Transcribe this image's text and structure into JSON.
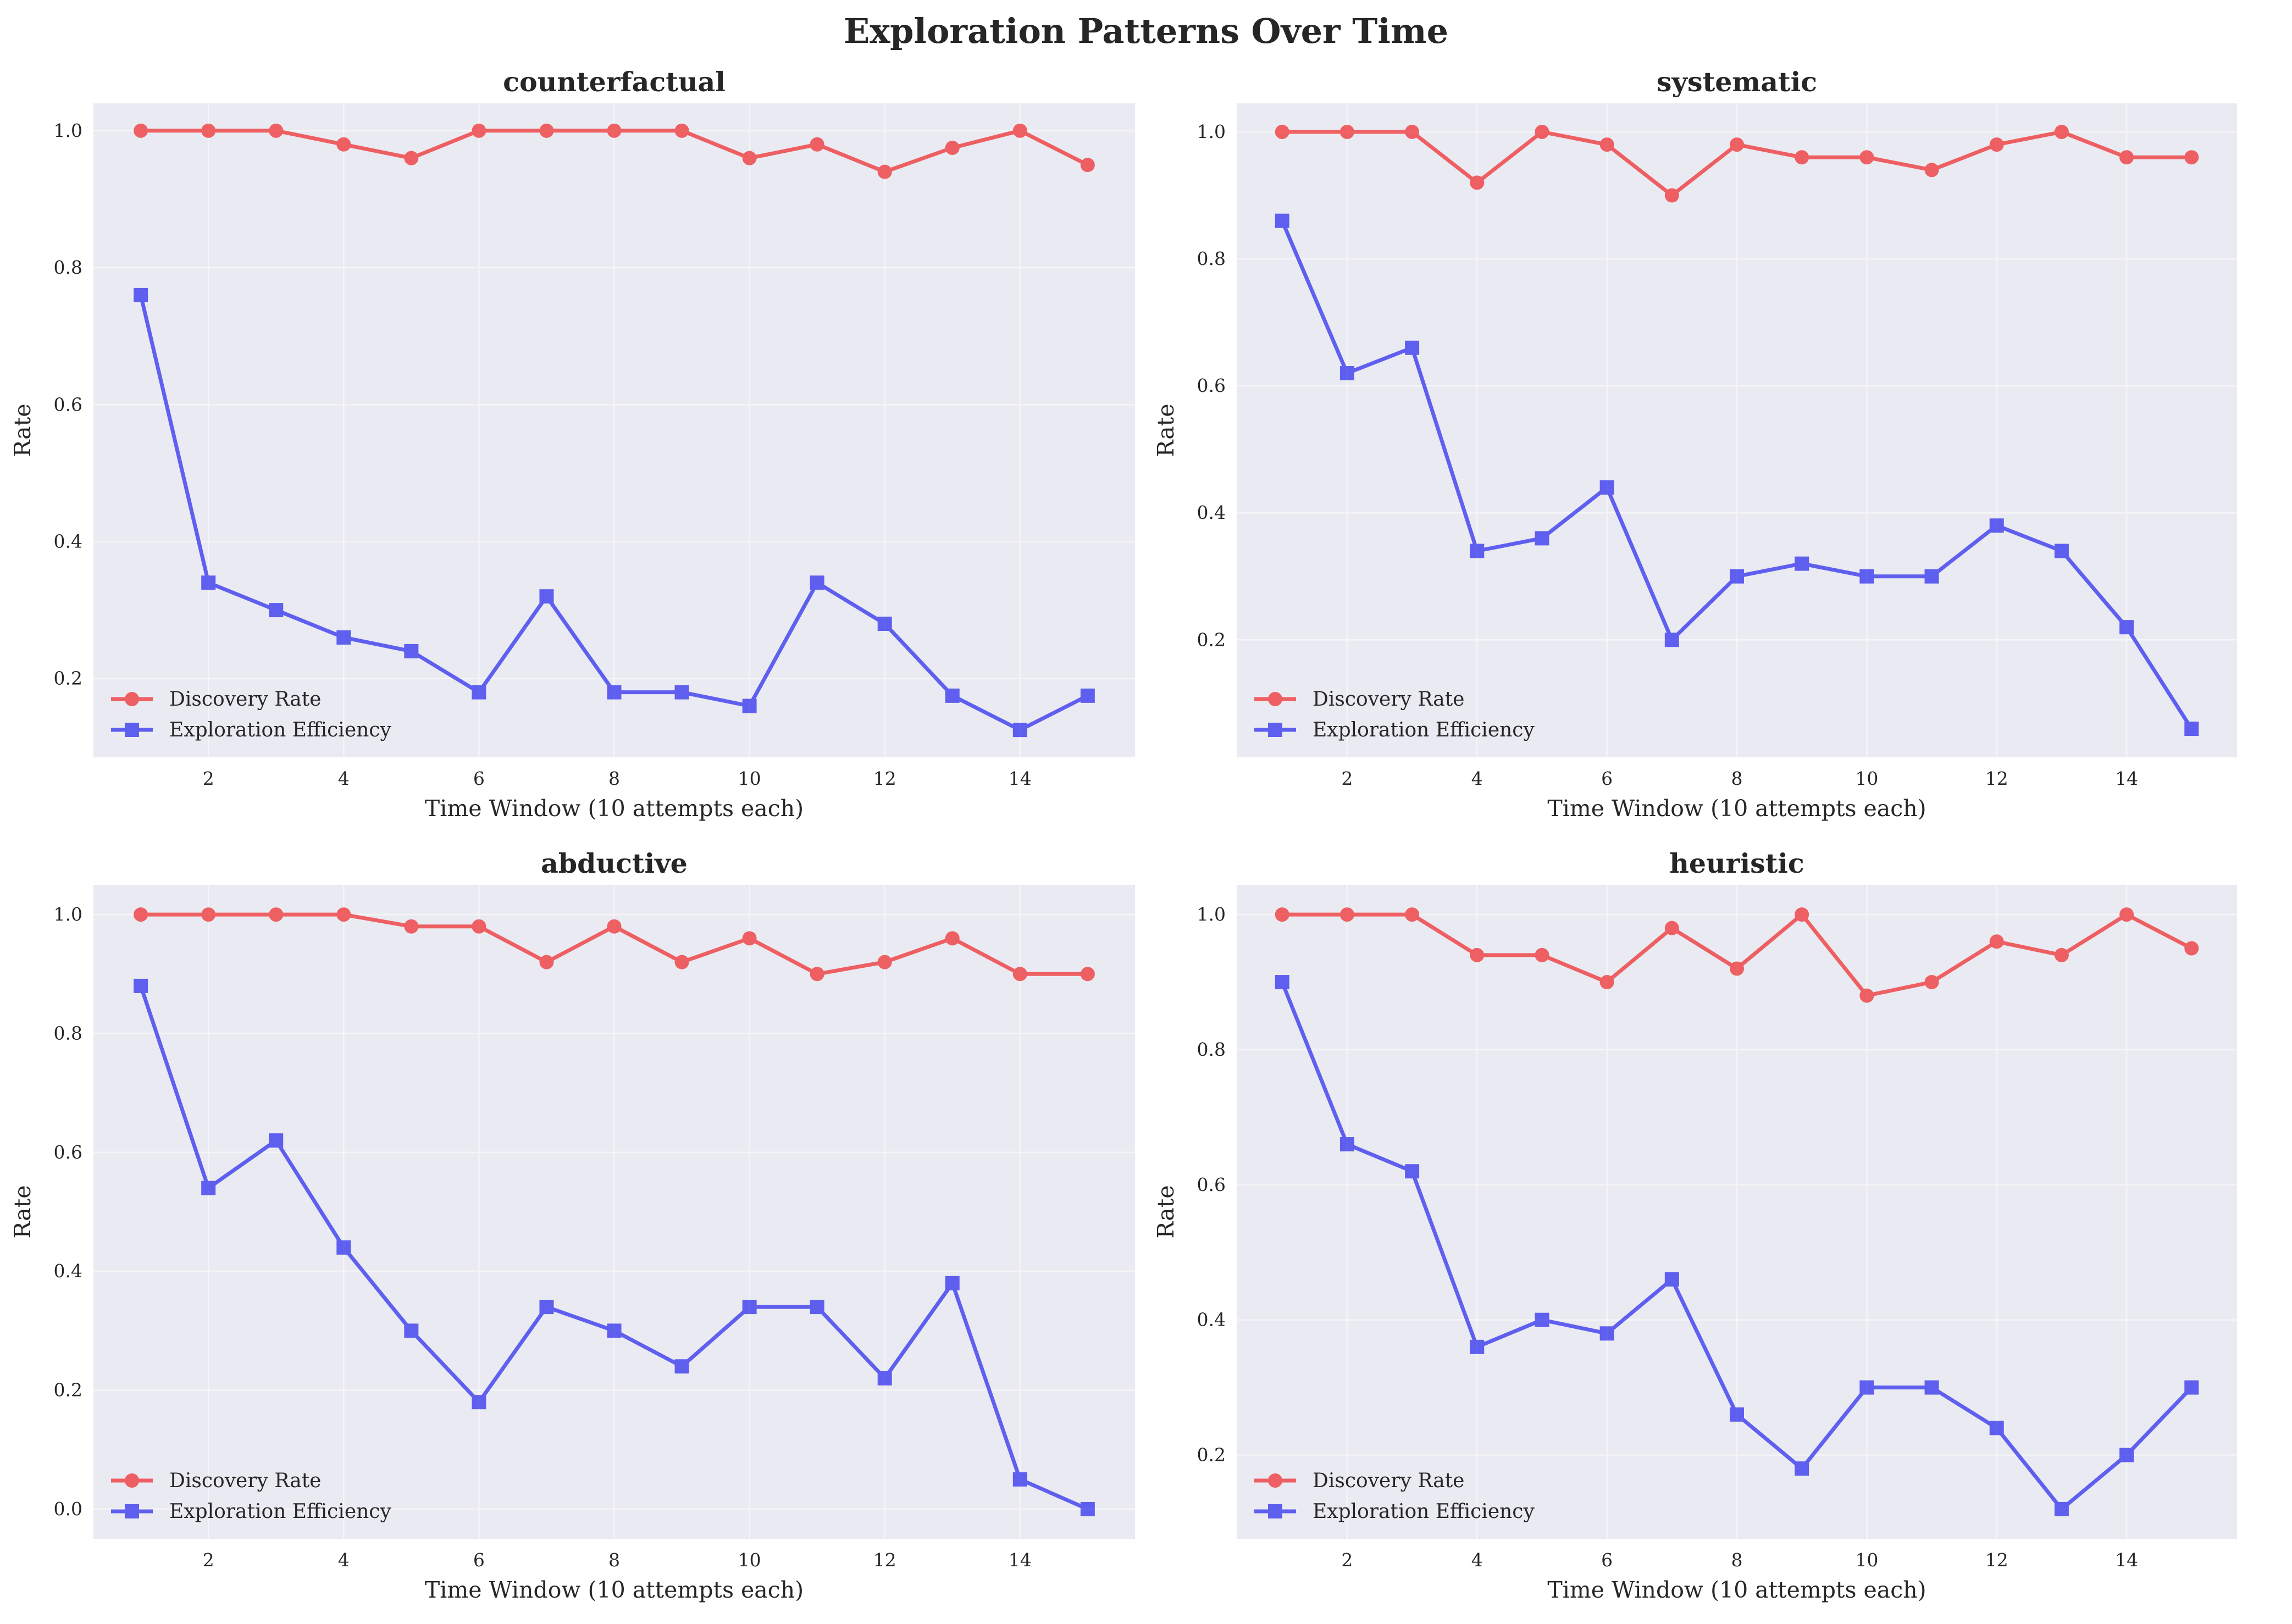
{
  "figure": {
    "title": "Exploration Patterns Over Time"
  },
  "colors": {
    "discovery": "#ef2b2b",
    "efficiency": "#2b2bef",
    "panel_bg": "#eaeaf2",
    "grid": "#f5f5f8",
    "text": "#262626"
  },
  "chart_data": [
    {
      "type": "line",
      "title": "counterfactual",
      "xlabel": "Time Window (10 attempts each)",
      "ylabel": "Rate",
      "x": [
        1,
        2,
        3,
        4,
        5,
        6,
        7,
        8,
        9,
        10,
        11,
        12,
        13,
        14,
        15
      ],
      "xticks": [
        2,
        4,
        6,
        8,
        10,
        12,
        14
      ],
      "xlim": [
        0.3,
        15.7
      ],
      "ylim": [
        0.085,
        1.04
      ],
      "yticks": [
        0.2,
        0.4,
        0.6,
        0.8,
        1.0
      ],
      "ytick_labels": [
        "0.2",
        "0.4",
        "0.6",
        "0.8",
        "1.0"
      ],
      "grid": true,
      "legend": "lower-left",
      "series": [
        {
          "name": "Discovery Rate",
          "marker": "circle",
          "color": "#ef2b2b",
          "values": [
            1.0,
            1.0,
            1.0,
            0.98,
            0.96,
            1.0,
            1.0,
            1.0,
            1.0,
            0.96,
            0.98,
            0.94,
            0.975,
            1.0,
            0.95
          ]
        },
        {
          "name": "Exploration Efficiency",
          "marker": "square",
          "color": "#2b2bef",
          "values": [
            0.76,
            0.34,
            0.3,
            0.26,
            0.24,
            0.18,
            0.32,
            0.18,
            0.18,
            0.16,
            0.34,
            0.28,
            0.175,
            0.125,
            0.175
          ]
        }
      ]
    },
    {
      "type": "line",
      "title": "systematic",
      "xlabel": "Time Window (10 attempts each)",
      "ylabel": "Rate",
      "x": [
        1,
        2,
        3,
        4,
        5,
        6,
        7,
        8,
        9,
        10,
        11,
        12,
        13,
        14,
        15
      ],
      "xticks": [
        2,
        4,
        6,
        8,
        10,
        12,
        14
      ],
      "xlim": [
        0.3,
        15.7
      ],
      "ylim": [
        0.015,
        1.045
      ],
      "yticks": [
        0.2,
        0.4,
        0.6,
        0.8,
        1.0
      ],
      "ytick_labels": [
        "0.2",
        "0.4",
        "0.6",
        "0.8",
        "1.0"
      ],
      "grid": true,
      "legend": "lower-left",
      "series": [
        {
          "name": "Discovery Rate",
          "marker": "circle",
          "color": "#ef2b2b",
          "values": [
            1.0,
            1.0,
            1.0,
            0.92,
            1.0,
            0.98,
            0.9,
            0.98,
            0.96,
            0.96,
            0.94,
            0.98,
            1.0,
            0.96,
            0.96
          ]
        },
        {
          "name": "Exploration Efficiency",
          "marker": "square",
          "color": "#2b2bef",
          "values": [
            0.86,
            0.62,
            0.66,
            0.34,
            0.36,
            0.44,
            0.2,
            0.3,
            0.32,
            0.3,
            0.3,
            0.38,
            0.34,
            0.22,
            0.06
          ]
        }
      ]
    },
    {
      "type": "line",
      "title": "abductive",
      "xlabel": "Time Window (10 attempts each)",
      "ylabel": "Rate",
      "x": [
        1,
        2,
        3,
        4,
        5,
        6,
        7,
        8,
        9,
        10,
        11,
        12,
        13,
        14,
        15
      ],
      "xticks": [
        2,
        4,
        6,
        8,
        10,
        12,
        14
      ],
      "xlim": [
        0.3,
        15.7
      ],
      "ylim": [
        -0.05,
        1.05
      ],
      "yticks": [
        0.0,
        0.2,
        0.4,
        0.6,
        0.8,
        1.0
      ],
      "ytick_labels": [
        "0.0",
        "0.2",
        "0.4",
        "0.6",
        "0.8",
        "1.0"
      ],
      "grid": true,
      "legend": "lower-left",
      "series": [
        {
          "name": "Discovery Rate",
          "marker": "circle",
          "color": "#ef2b2b",
          "values": [
            1.0,
            1.0,
            1.0,
            1.0,
            0.98,
            0.98,
            0.92,
            0.98,
            0.92,
            0.96,
            0.9,
            0.92,
            0.96,
            0.9,
            0.9
          ]
        },
        {
          "name": "Exploration Efficiency",
          "marker": "square",
          "color": "#2b2bef",
          "values": [
            0.88,
            0.54,
            0.62,
            0.44,
            0.3,
            0.18,
            0.34,
            0.3,
            0.24,
            0.34,
            0.34,
            0.22,
            0.38,
            0.05,
            0.0
          ]
        }
      ]
    },
    {
      "type": "line",
      "title": "heuristic",
      "xlabel": "Time Window (10 attempts each)",
      "ylabel": "Rate",
      "x": [
        1,
        2,
        3,
        4,
        5,
        6,
        7,
        8,
        9,
        10,
        11,
        12,
        13,
        14,
        15
      ],
      "xticks": [
        2,
        4,
        6,
        8,
        10,
        12,
        14
      ],
      "xlim": [
        0.3,
        15.7
      ],
      "ylim": [
        0.076,
        1.044
      ],
      "yticks": [
        0.2,
        0.4,
        0.6,
        0.8,
        1.0
      ],
      "ytick_labels": [
        "0.2",
        "0.4",
        "0.6",
        "0.8",
        "1.0"
      ],
      "grid": true,
      "legend": "lower-left",
      "series": [
        {
          "name": "Discovery Rate",
          "marker": "circle",
          "color": "#ef2b2b",
          "values": [
            1.0,
            1.0,
            1.0,
            0.94,
            0.94,
            0.9,
            0.98,
            0.92,
            1.0,
            0.88,
            0.9,
            0.96,
            0.94,
            1.0,
            0.95
          ]
        },
        {
          "name": "Exploration Efficiency",
          "marker": "square",
          "color": "#2b2bef",
          "values": [
            0.9,
            0.66,
            0.62,
            0.36,
            0.4,
            0.38,
            0.46,
            0.26,
            0.18,
            0.3,
            0.3,
            0.24,
            0.12,
            0.2,
            0.3
          ]
        }
      ]
    }
  ]
}
